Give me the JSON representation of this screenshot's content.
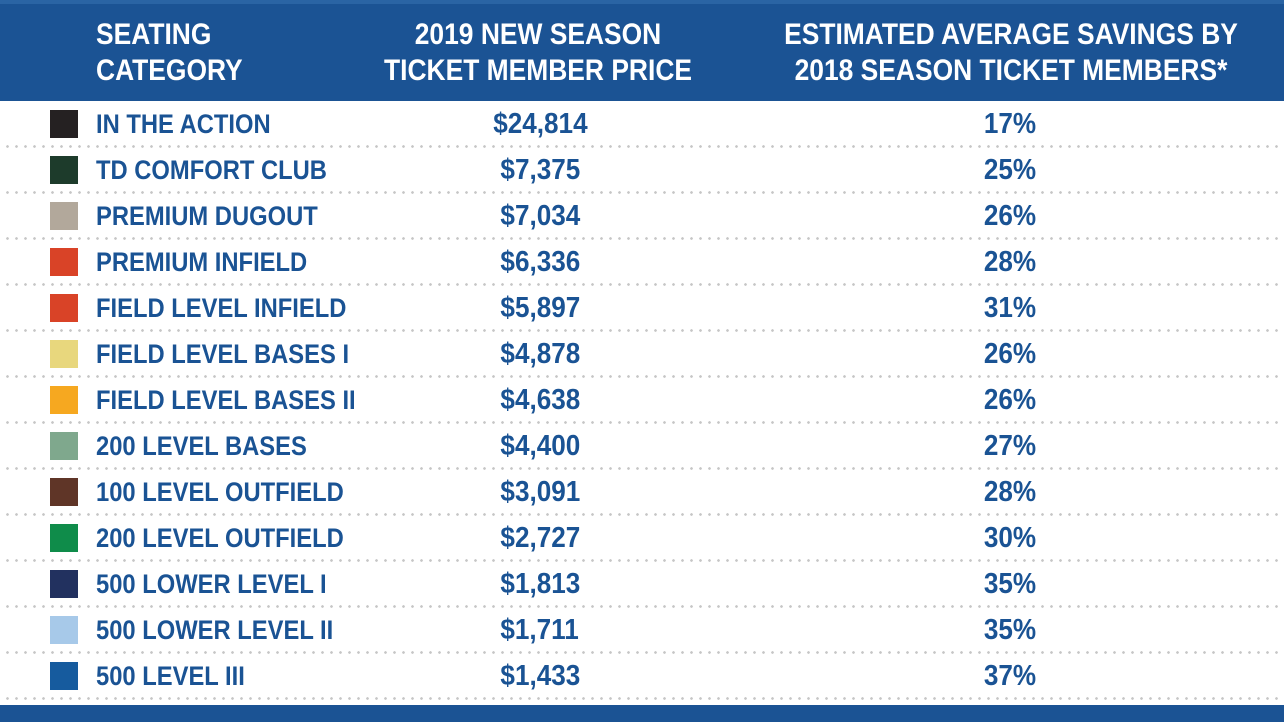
{
  "accent_color": "#1b5394",
  "text_color": "#1a5394",
  "separator_dot_color": "#c6c6c6",
  "table": {
    "headers": [
      {
        "line1": "SEATING",
        "line2": "CATEGORY"
      },
      {
        "line1": "2019 NEW SEASON",
        "line2": "TICKET MEMBER PRICE"
      },
      {
        "line1": "ESTIMATED AVERAGE SAVINGS BY",
        "line2": "2018 SEASON TICKET MEMBERS*"
      }
    ],
    "rows": [
      {
        "category": "IN THE ACTION",
        "color": "#252122",
        "price": "$24,814",
        "savings": "17%"
      },
      {
        "category": "TD COMFORT CLUB",
        "color": "#1d3b2b",
        "price": "$7,375",
        "savings": "25%"
      },
      {
        "category": "PREMIUM DUGOUT",
        "color": "#b2a89b",
        "price": "$7,034",
        "savings": "26%"
      },
      {
        "category": "PREMIUM INFIELD",
        "color": "#d94327",
        "price": "$6,336",
        "savings": "28%"
      },
      {
        "category": "FIELD LEVEL INFIELD",
        "color": "#d94327",
        "price": "$5,897",
        "savings": "31%"
      },
      {
        "category": "FIELD LEVEL BASES I",
        "color": "#e8d77d",
        "price": "$4,878",
        "savings": "26%"
      },
      {
        "category": "FIELD LEVEL BASES II",
        "color": "#f6a820",
        "price": "$4,638",
        "savings": "26%"
      },
      {
        "category": "200 LEVEL BASES",
        "color": "#7fa88d",
        "price": "$4,400",
        "savings": "27%"
      },
      {
        "category": "100 LEVEL OUTFIELD",
        "color": "#5f3527",
        "price": "$3,091",
        "savings": "28%"
      },
      {
        "category": "200 LEVEL OUTFIELD",
        "color": "#0f8c4a",
        "price": "$2,727",
        "savings": "30%"
      },
      {
        "category": "500 LOWER LEVEL I",
        "color": "#22315f",
        "price": "$1,813",
        "savings": "35%"
      },
      {
        "category": "500 LOWER LEVEL II",
        "color": "#a7c9e9",
        "price": "$1,711",
        "savings": "35%"
      },
      {
        "category": "500 LEVEL III",
        "color": "#165b9e",
        "price": "$1,433",
        "savings": "37%"
      }
    ]
  },
  "chart_data": {
    "type": "table",
    "columns": [
      "SEATING CATEGORY",
      "2019 NEW SEASON TICKET MEMBER PRICE",
      "ESTIMATED AVERAGE SAVINGS BY 2018 SEASON TICKET MEMBERS*"
    ],
    "rows": [
      {
        "seating_category": "IN THE ACTION",
        "swatch_color": "#252122",
        "price_2019": 24814,
        "savings_pct": 17
      },
      {
        "seating_category": "TD COMFORT CLUB",
        "swatch_color": "#1d3b2b",
        "price_2019": 7375,
        "savings_pct": 25
      },
      {
        "seating_category": "PREMIUM DUGOUT",
        "swatch_color": "#b2a89b",
        "price_2019": 7034,
        "savings_pct": 26
      },
      {
        "seating_category": "PREMIUM INFIELD",
        "swatch_color": "#d94327",
        "price_2019": 6336,
        "savings_pct": 28
      },
      {
        "seating_category": "FIELD LEVEL INFIELD",
        "swatch_color": "#d94327",
        "price_2019": 5897,
        "savings_pct": 31
      },
      {
        "seating_category": "FIELD LEVEL BASES I",
        "swatch_color": "#e8d77d",
        "price_2019": 4878,
        "savings_pct": 26
      },
      {
        "seating_category": "FIELD LEVEL BASES II",
        "swatch_color": "#f6a820",
        "price_2019": 4638,
        "savings_pct": 26
      },
      {
        "seating_category": "200 LEVEL BASES",
        "swatch_color": "#7fa88d",
        "price_2019": 4400,
        "savings_pct": 27
      },
      {
        "seating_category": "100 LEVEL OUTFIELD",
        "swatch_color": "#5f3527",
        "price_2019": 3091,
        "savings_pct": 28
      },
      {
        "seating_category": "200 LEVEL OUTFIELD",
        "swatch_color": "#0f8c4a",
        "price_2019": 2727,
        "savings_pct": 30
      },
      {
        "seating_category": "500 LOWER LEVEL I",
        "swatch_color": "#22315f",
        "price_2019": 1813,
        "savings_pct": 35
      },
      {
        "seating_category": "500 LOWER LEVEL II",
        "swatch_color": "#a7c9e9",
        "price_2019": 1711,
        "savings_pct": 35
      },
      {
        "seating_category": "500 LEVEL III",
        "swatch_color": "#165b9e",
        "price_2019": 1433,
        "savings_pct": 37
      }
    ]
  }
}
